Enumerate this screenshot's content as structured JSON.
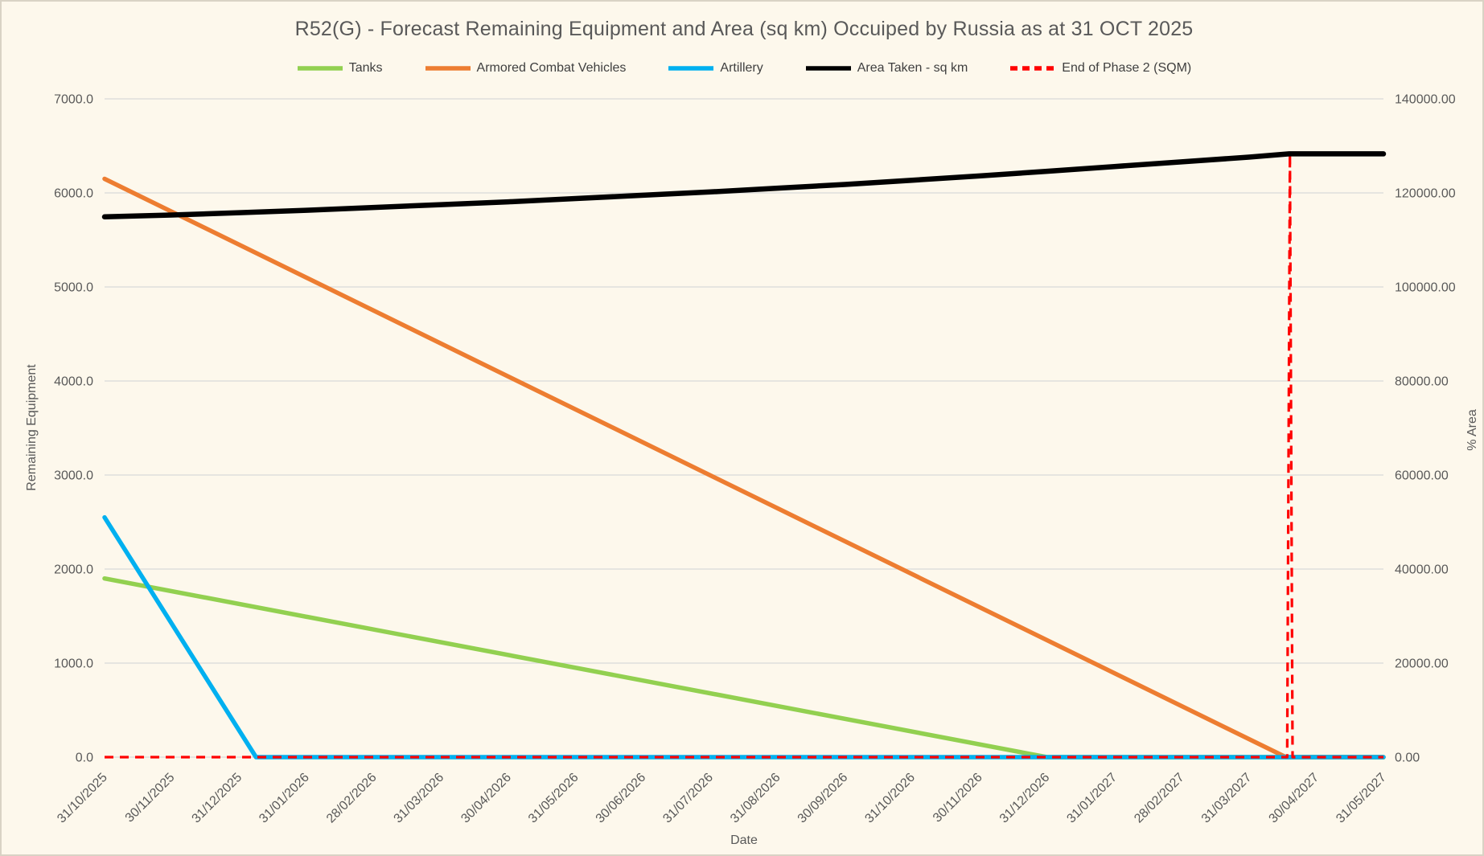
{
  "title": "R52(G) - Forecast Remaining Equipment and Area (sq km) Occuiped by Russia as at 31 OCT 2025",
  "colors": {
    "background": "#fdf8ec",
    "frame_border": "#d9d3c5",
    "gridline": "#d9d9d9",
    "axis_text": "#595959",
    "legend_text": "#3f3f3f",
    "tanks": "#92d050",
    "armored_combat_vehicles": "#ed7d31",
    "artillery": "#00b0f0",
    "area_taken": "#000000",
    "end_of_phase_2": "#ff0000"
  },
  "chart_data": {
    "type": "line",
    "title": "R52(G) - Forecast Remaining Equipment and Area (sq km) Occuiped by Russia as at 31 OCT 2025",
    "xlabel": "Date",
    "ylabel_left": "Remaining Equipment",
    "ylabel_right": "% Area",
    "legend_position": "top",
    "grid": "horizontal",
    "categories": [
      "31/10/2025",
      "30/11/2025",
      "31/12/2025",
      "31/01/2026",
      "28/02/2026",
      "31/03/2026",
      "30/04/2026",
      "31/05/2026",
      "30/06/2026",
      "31/07/2026",
      "31/08/2026",
      "30/09/2026",
      "31/10/2026",
      "30/11/2026",
      "31/12/2026",
      "31/01/2027",
      "28/02/2027",
      "31/03/2027",
      "30/04/2027",
      "31/05/2027"
    ],
    "left_axis": {
      "min": 0,
      "max": 7000,
      "step": 1000,
      "tick_labels": [
        "0.0",
        "1000.0",
        "2000.0",
        "3000.0",
        "4000.0",
        "5000.0",
        "6000.0",
        "7000.0"
      ]
    },
    "right_axis": {
      "min": 0,
      "max": 140000,
      "step": 20000,
      "tick_labels": [
        "0.00",
        "20000.00",
        "40000.00",
        "60000.00",
        "80000.00",
        "100000.00",
        "120000.00",
        "140000.00"
      ]
    },
    "legend_order": [
      "Tanks",
      "Armored Combat Vehicles",
      "Artillery",
      "Area Taken - sq km",
      "End of Phase 2 (SQM)"
    ],
    "series": [
      {
        "name": "Tanks",
        "axis": "left",
        "color": "#92d050",
        "style": "solid",
        "width": 5.5,
        "values": [
          1900,
          1764,
          1629,
          1493,
          1357,
          1221,
          1086,
          950,
          814,
          679,
          543,
          407,
          271,
          136,
          0,
          0,
          0,
          0,
          0,
          0
        ],
        "points": [
          [
            0,
            1900
          ],
          [
            14,
            0
          ],
          [
            19,
            0
          ]
        ]
      },
      {
        "name": "Armored Combat Vehicles",
        "axis": "left",
        "color": "#ed7d31",
        "style": "solid",
        "width": 5.5,
        "values": [
          6150,
          5800,
          5450,
          5100,
          4750,
          4400,
          4050,
          3700,
          3350,
          3000,
          2650,
          2300,
          1950,
          1600,
          1250,
          900,
          550,
          200,
          0,
          0
        ],
        "points": [
          [
            0,
            6150
          ],
          [
            17.55,
            0
          ],
          [
            19,
            0
          ]
        ]
      },
      {
        "name": "Artillery",
        "axis": "left",
        "color": "#00b0f0",
        "style": "solid",
        "width": 5.5,
        "values": [
          2550,
          1417,
          283,
          0,
          0,
          0,
          0,
          0,
          0,
          0,
          0,
          0,
          0,
          0,
          0,
          0,
          0,
          0,
          0,
          0
        ],
        "points": [
          [
            0,
            2550
          ],
          [
            2.25,
            0
          ],
          [
            19,
            0
          ]
        ]
      },
      {
        "name": "End of Phase 2 (SQM)",
        "axis": "right",
        "color": "#ff0000",
        "style": "dashed",
        "width": 3.2,
        "values": [
          0,
          0,
          0,
          0,
          0,
          0,
          0,
          0,
          0,
          0,
          0,
          0,
          0,
          0,
          0,
          0,
          0,
          0,
          0,
          0
        ],
        "spike": {
          "x_index": 17.6,
          "value": 128300
        },
        "points": [
          [
            0,
            0
          ],
          [
            17.57,
            0
          ],
          [
            17.61,
            128300
          ],
          [
            17.65,
            0
          ],
          [
            19,
            0
          ]
        ]
      },
      {
        "name": "Area Taken - sq km",
        "axis": "right",
        "color": "#000000",
        "style": "solid",
        "width": 6.5,
        "values": [
          114900,
          115300,
          115800,
          116300,
          116900,
          117500,
          118100,
          118800,
          119500,
          120200,
          121000,
          121800,
          122700,
          123600,
          124600,
          125600,
          126600,
          127600,
          128300,
          128300
        ],
        "points": [
          [
            0,
            114900
          ],
          [
            1,
            115300
          ],
          [
            2,
            115800
          ],
          [
            3,
            116300
          ],
          [
            4,
            116900
          ],
          [
            5,
            117500
          ],
          [
            6,
            118100
          ],
          [
            7,
            118800
          ],
          [
            8,
            119500
          ],
          [
            9,
            120200
          ],
          [
            10,
            121000
          ],
          [
            11,
            121800
          ],
          [
            12,
            122700
          ],
          [
            13,
            123600
          ],
          [
            14,
            124600
          ],
          [
            15,
            125600
          ],
          [
            16,
            126600
          ],
          [
            17,
            127600
          ],
          [
            17.6,
            128300
          ],
          [
            18,
            128300
          ],
          [
            19,
            128300
          ]
        ]
      }
    ]
  }
}
